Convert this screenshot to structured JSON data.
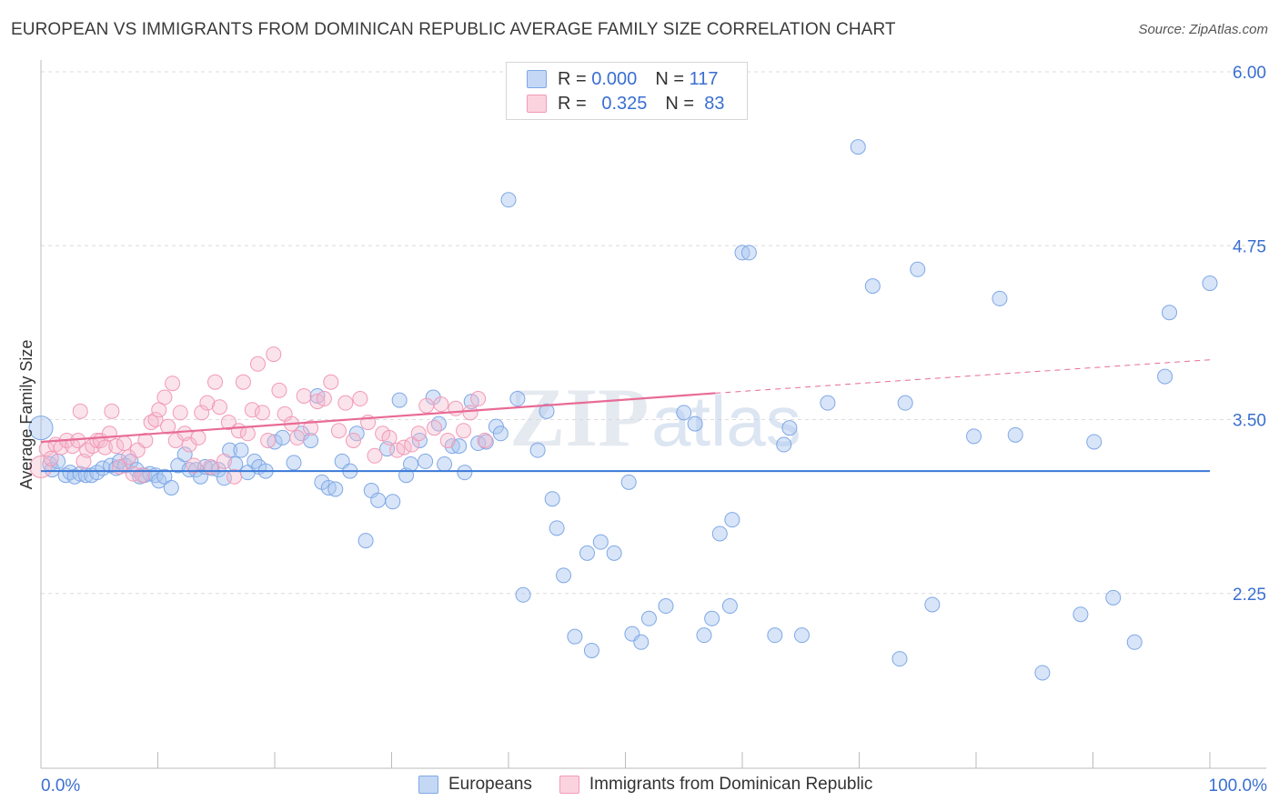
{
  "header": {
    "title": "EUROPEAN VS IMMIGRANTS FROM DOMINICAN REPUBLIC AVERAGE FAMILY SIZE CORRELATION CHART",
    "source": "Source: ZipAtlas.com"
  },
  "legend": {
    "rows": [
      {
        "r_label": "R =",
        "r_value": "0.000",
        "n_label": "N =",
        "n_value": "117",
        "color": "#a9c6ef"
      },
      {
        "r_label": "R =",
        "r_value": "0.325",
        "n_label": "N =",
        "n_value": "83",
        "color": "#f6b9cc"
      }
    ]
  },
  "bottom_legend": {
    "items": [
      {
        "label": "Europeans",
        "color": "#a9c6ef"
      },
      {
        "label": "Immigrants from Dominican Republic",
        "color": "#f6b9cc"
      }
    ]
  },
  "watermark": {
    "zip": "ZIP",
    "atlas": "atlas"
  },
  "chart_data": {
    "type": "scatter",
    "ylabel": "Average Family Size",
    "xlabel": "",
    "x_tick_labels": {
      "left": "0.0%",
      "right": "100.0%"
    },
    "y_ticks": [
      2.25,
      3.5,
      4.75,
      6.0
    ],
    "y_tick_labels": [
      "2.25",
      "3.50",
      "4.75",
      "6.00"
    ],
    "xlim": [
      0,
      100
    ],
    "ylim": [
      1.0,
      6.1
    ],
    "series": [
      {
        "name": "Europeans",
        "color": "#7fa8e6",
        "trend": {
          "x0": 0,
          "y0": 3.13,
          "x1": 100,
          "y1": 3.13,
          "color": "#3a78d8"
        },
        "points": [
          [
            0.0,
            3.44
          ],
          [
            0.8,
            3.18
          ],
          [
            1.0,
            3.14
          ],
          [
            1.5,
            3.2
          ],
          [
            2.2,
            3.1
          ],
          [
            2.6,
            3.12
          ],
          [
            3.0,
            3.09
          ],
          [
            3.5,
            3.11
          ],
          [
            4.0,
            3.1
          ],
          [
            4.5,
            3.1
          ],
          [
            5.0,
            3.12
          ],
          [
            5.5,
            3.15
          ],
          [
            6.2,
            3.17
          ],
          [
            6.7,
            3.15
          ],
          [
            7.0,
            3.2
          ],
          [
            7.5,
            3.17
          ],
          [
            8.0,
            3.2
          ],
          [
            8.5,
            3.14
          ],
          [
            8.8,
            3.09
          ],
          [
            9.2,
            3.1
          ],
          [
            9.7,
            3.11
          ],
          [
            10.2,
            3.1
          ],
          [
            10.5,
            3.06
          ],
          [
            11.0,
            3.09
          ],
          [
            11.6,
            3.01
          ],
          [
            12.2,
            3.17
          ],
          [
            12.8,
            3.25
          ],
          [
            13.2,
            3.14
          ],
          [
            13.8,
            3.14
          ],
          [
            14.2,
            3.09
          ],
          [
            14.6,
            3.16
          ],
          [
            15.2,
            3.15
          ],
          [
            15.8,
            3.14
          ],
          [
            16.3,
            3.08
          ],
          [
            16.8,
            3.28
          ],
          [
            17.3,
            3.18
          ],
          [
            17.8,
            3.28
          ],
          [
            18.4,
            3.12
          ],
          [
            19.0,
            3.2
          ],
          [
            19.4,
            3.16
          ],
          [
            20.0,
            3.13
          ],
          [
            20.8,
            3.34
          ],
          [
            21.5,
            3.37
          ],
          [
            22.5,
            3.19
          ],
          [
            23.2,
            3.4
          ],
          [
            24.0,
            3.35
          ],
          [
            24.6,
            3.67
          ],
          [
            25.0,
            3.05
          ],
          [
            25.6,
            3.01
          ],
          [
            26.2,
            3.0
          ],
          [
            26.8,
            3.2
          ],
          [
            27.5,
            3.13
          ],
          [
            28.1,
            3.4
          ],
          [
            28.9,
            2.63
          ],
          [
            29.4,
            2.99
          ],
          [
            30.0,
            2.92
          ],
          [
            30.8,
            3.29
          ],
          [
            31.3,
            2.91
          ],
          [
            31.9,
            3.64
          ],
          [
            32.5,
            3.1
          ],
          [
            32.9,
            3.18
          ],
          [
            33.7,
            3.35
          ],
          [
            34.2,
            3.2
          ],
          [
            34.9,
            3.66
          ],
          [
            35.4,
            3.47
          ],
          [
            35.9,
            3.18
          ],
          [
            36.6,
            3.31
          ],
          [
            37.2,
            3.31
          ],
          [
            37.7,
            3.12
          ],
          [
            38.3,
            3.63
          ],
          [
            38.9,
            3.33
          ],
          [
            39.6,
            3.34
          ],
          [
            40.5,
            3.45
          ],
          [
            40.9,
            3.4
          ],
          [
            41.6,
            5.08
          ],
          [
            42.4,
            3.65
          ],
          [
            42.9,
            2.24
          ],
          [
            44.2,
            3.28
          ],
          [
            45.0,
            3.56
          ],
          [
            45.5,
            2.93
          ],
          [
            45.9,
            2.72
          ],
          [
            46.5,
            2.38
          ],
          [
            47.5,
            1.94
          ],
          [
            48.6,
            2.54
          ],
          [
            49.0,
            1.84
          ],
          [
            49.8,
            2.62
          ],
          [
            51.0,
            2.54
          ],
          [
            52.3,
            3.05
          ],
          [
            52.6,
            1.96
          ],
          [
            53.4,
            1.9
          ],
          [
            54.1,
            2.07
          ],
          [
            55.6,
            2.16
          ],
          [
            57.2,
            3.55
          ],
          [
            58.2,
            3.47
          ],
          [
            59.0,
            1.95
          ],
          [
            59.7,
            2.07
          ],
          [
            60.4,
            2.68
          ],
          [
            61.3,
            2.16
          ],
          [
            61.5,
            2.78
          ],
          [
            62.4,
            4.7
          ],
          [
            63.0,
            4.7
          ],
          [
            65.3,
            1.95
          ],
          [
            66.1,
            3.32
          ],
          [
            66.6,
            3.44
          ],
          [
            67.7,
            1.95
          ],
          [
            70.0,
            3.62
          ],
          [
            74.0,
            4.46
          ],
          [
            72.7,
            5.46
          ],
          [
            76.4,
            1.78
          ],
          [
            76.9,
            3.62
          ],
          [
            78.0,
            4.58
          ],
          [
            79.3,
            2.17
          ],
          [
            83.0,
            3.38
          ],
          [
            85.3,
            4.37
          ],
          [
            86.7,
            3.39
          ],
          [
            89.1,
            1.68
          ],
          [
            92.5,
            2.1
          ],
          [
            93.7,
            3.34
          ],
          [
            95.4,
            2.22
          ],
          [
            97.3,
            1.9
          ],
          [
            100.0,
            3.81
          ],
          [
            100.4,
            4.27
          ],
          [
            104.0,
            4.48
          ]
        ]
      },
      {
        "name": "Immigrants from Dominican Republic",
        "color": "#f19ab7",
        "trend": {
          "x0": 0,
          "y0": 3.34,
          "x1": 60,
          "y1": 3.69,
          "x_dash_end": 100,
          "y_dash_end": 3.93,
          "color": "#e86b96"
        },
        "points": [
          [
            0.0,
            3.16
          ],
          [
            0.5,
            3.29
          ],
          [
            0.9,
            3.22
          ],
          [
            1.3,
            3.32
          ],
          [
            1.8,
            3.3
          ],
          [
            2.3,
            3.35
          ],
          [
            2.8,
            3.31
          ],
          [
            3.3,
            3.35
          ],
          [
            3.5,
            3.56
          ],
          [
            3.8,
            3.2
          ],
          [
            4.1,
            3.28
          ],
          [
            4.6,
            3.31
          ],
          [
            5.0,
            3.35
          ],
          [
            5.3,
            3.35
          ],
          [
            5.7,
            3.3
          ],
          [
            6.1,
            3.4
          ],
          [
            6.3,
            3.56
          ],
          [
            6.7,
            3.31
          ],
          [
            7.0,
            3.16
          ],
          [
            7.4,
            3.33
          ],
          [
            7.8,
            3.23
          ],
          [
            8.2,
            3.11
          ],
          [
            8.6,
            3.28
          ],
          [
            9.0,
            3.1
          ],
          [
            9.3,
            3.35
          ],
          [
            9.8,
            3.48
          ],
          [
            10.2,
            3.5
          ],
          [
            10.5,
            3.57
          ],
          [
            11.0,
            3.66
          ],
          [
            11.3,
            3.45
          ],
          [
            11.7,
            3.76
          ],
          [
            12.0,
            3.35
          ],
          [
            12.4,
            3.55
          ],
          [
            12.8,
            3.4
          ],
          [
            13.2,
            3.32
          ],
          [
            13.6,
            3.17
          ],
          [
            14.0,
            3.37
          ],
          [
            14.3,
            3.55
          ],
          [
            14.8,
            3.62
          ],
          [
            15.1,
            3.16
          ],
          [
            15.5,
            3.77
          ],
          [
            15.9,
            3.59
          ],
          [
            16.3,
            3.2
          ],
          [
            16.7,
            3.48
          ],
          [
            17.2,
            3.09
          ],
          [
            17.6,
            3.42
          ],
          [
            18.0,
            3.77
          ],
          [
            18.4,
            3.4
          ],
          [
            18.8,
            3.57
          ],
          [
            19.3,
            3.9
          ],
          [
            19.7,
            3.55
          ],
          [
            20.2,
            3.35
          ],
          [
            20.7,
            3.97
          ],
          [
            21.2,
            3.71
          ],
          [
            21.7,
            3.54
          ],
          [
            22.3,
            3.47
          ],
          [
            22.8,
            3.37
          ],
          [
            23.4,
            3.67
          ],
          [
            24.0,
            3.44
          ],
          [
            24.6,
            3.63
          ],
          [
            25.2,
            3.65
          ],
          [
            25.8,
            3.77
          ],
          [
            26.5,
            3.42
          ],
          [
            27.1,
            3.62
          ],
          [
            27.8,
            3.35
          ],
          [
            28.4,
            3.65
          ],
          [
            29.1,
            3.48
          ],
          [
            29.7,
            3.24
          ],
          [
            30.4,
            3.4
          ],
          [
            31.0,
            3.37
          ],
          [
            31.7,
            3.28
          ],
          [
            32.3,
            3.3
          ],
          [
            33.0,
            3.32
          ],
          [
            33.6,
            3.4
          ],
          [
            34.3,
            3.6
          ],
          [
            35.0,
            3.44
          ],
          [
            35.6,
            3.61
          ],
          [
            36.2,
            3.35
          ],
          [
            36.9,
            3.58
          ],
          [
            37.6,
            3.42
          ],
          [
            38.2,
            3.55
          ],
          [
            38.9,
            3.65
          ],
          [
            39.5,
            3.35
          ]
        ]
      }
    ]
  }
}
